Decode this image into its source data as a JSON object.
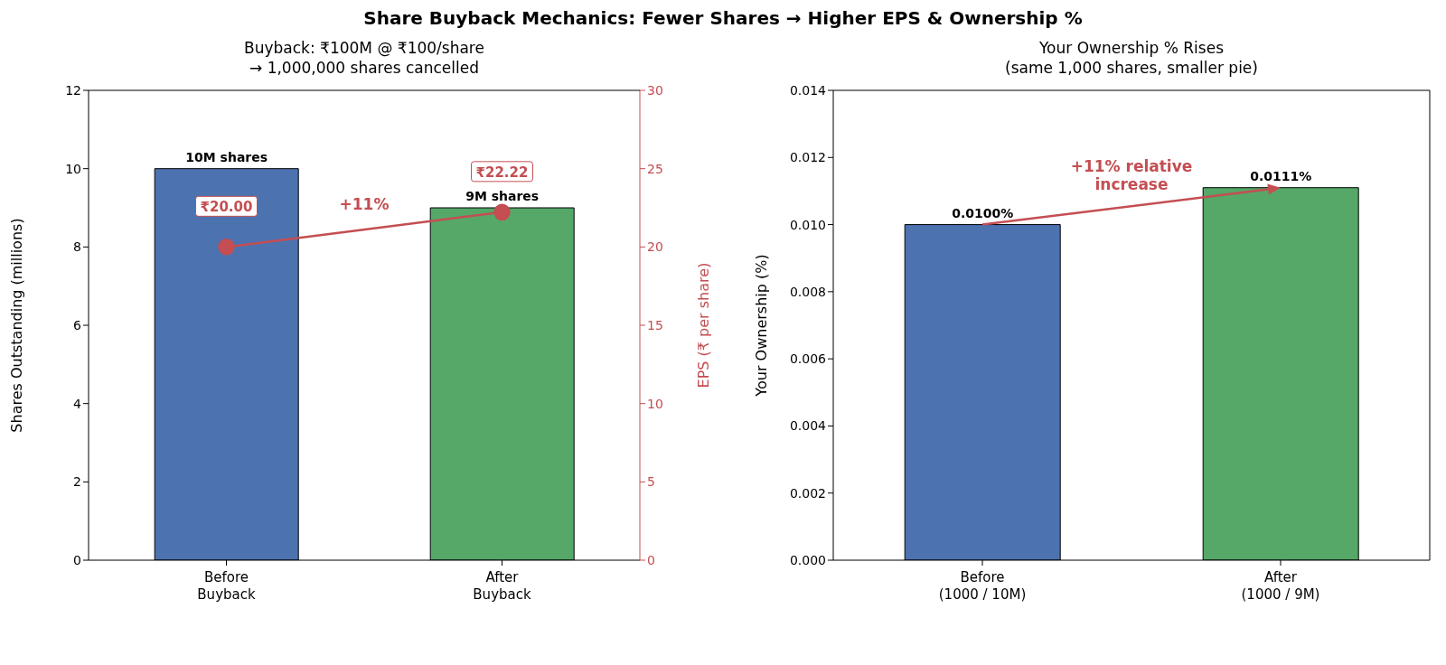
{
  "chart_data": [
    {
      "type": "other",
      "title": "Share Buyback Mechanics: Fewer Shares → Higher EPS & Ownership %"
    },
    {
      "type": "bar",
      "title": "Buyback: ₹100M @ ₹100/share\n→ 1,000,000 shares cancelled",
      "categories": [
        "Before\nBuyback",
        "After\nBuyback"
      ],
      "ylabel": "Shares Outstanding (millions)",
      "y2label": "EPS (₹ per share)",
      "ylim": [
        0,
        12
      ],
      "yticks": [
        0,
        2,
        4,
        6,
        8,
        10,
        12
      ],
      "y2lim": [
        0,
        30
      ],
      "y2ticks": [
        0,
        5,
        10,
        15,
        20,
        25,
        30
      ],
      "legend": false,
      "annotations": [
        "+11%"
      ],
      "series": [
        {
          "type": "bar",
          "colors": [
            "#4c72b0",
            "#55a868"
          ],
          "values": [
            10,
            9
          ],
          "value_labels": [
            "10M shares",
            "9M shares"
          ]
        },
        {
          "type": "line",
          "axis": "y2",
          "color": "#c44e52",
          "marker": "circle",
          "values": [
            20,
            22.22
          ],
          "value_labels": [
            "₹20.00",
            "₹22.22"
          ]
        }
      ]
    },
    {
      "type": "bar",
      "title": "Your Ownership % Rises\n(same 1,000 shares, smaller pie)",
      "categories": [
        "Before\n(1000 / 10M)",
        "After\n(1000 / 9M)"
      ],
      "ylabel": "Your Ownership (%)",
      "ylim": [
        0,
        0.014
      ],
      "yticks": [
        {
          "value": 0,
          "label": "0.000"
        },
        {
          "value": 0.002,
          "label": "0.002"
        },
        {
          "value": 0.004,
          "label": "0.004"
        },
        {
          "value": 0.006,
          "label": "0.006"
        },
        {
          "value": 0.008,
          "label": "0.008"
        },
        {
          "value": 0.01,
          "label": "0.010"
        },
        {
          "value": 0.012,
          "label": "0.012"
        },
        {
          "value": 0.014,
          "label": "0.014"
        }
      ],
      "legend": false,
      "annotations": [
        "+11% relative\nincrease"
      ],
      "series": [
        {
          "type": "bar",
          "colors": [
            "#4c72b0",
            "#55a868"
          ],
          "values": [
            0.01,
            0.0111
          ],
          "value_labels": [
            "0.0100%",
            "0.0111%"
          ]
        }
      ]
    }
  ]
}
